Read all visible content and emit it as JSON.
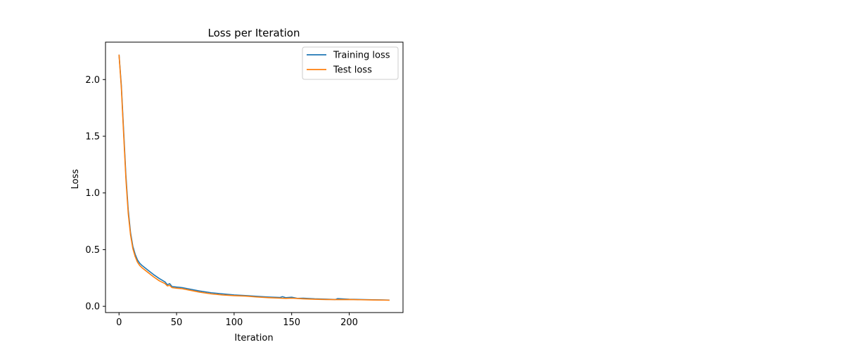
{
  "chart_data": {
    "type": "line",
    "title": "Loss per Iteration",
    "xlabel": "Iteration",
    "ylabel": "Loss",
    "xlim": [
      -11.75,
      246.75
    ],
    "ylim": [
      -0.055,
      2.33
    ],
    "xticks": [
      0,
      50,
      100,
      150,
      200
    ],
    "yticks": [
      0.0,
      0.5,
      1.0,
      1.5,
      2.0
    ],
    "xtick_labels": [
      "0",
      "50",
      "100",
      "150",
      "200"
    ],
    "ytick_labels": [
      "0.0",
      "0.5",
      "1.0",
      "1.5",
      "2.0"
    ],
    "grid": false,
    "legend_position": "top-right",
    "series": [
      {
        "name": "Training loss",
        "color": "#1f77b4",
        "x": [
          0,
          2,
          4,
          6,
          8,
          10,
          12,
          14,
          16,
          18,
          20,
          25,
          30,
          35,
          40,
          42,
          44,
          46,
          50,
          55,
          60,
          70,
          80,
          90,
          100,
          110,
          120,
          130,
          140,
          142,
          145,
          150,
          155,
          160,
          170,
          180,
          188,
          190,
          200,
          210,
          220,
          230,
          235
        ],
        "y": [
          2.22,
          1.95,
          1.55,
          1.15,
          0.85,
          0.65,
          0.53,
          0.46,
          0.41,
          0.38,
          0.36,
          0.32,
          0.28,
          0.245,
          0.215,
          0.19,
          0.2,
          0.175,
          0.17,
          0.165,
          0.155,
          0.135,
          0.12,
          0.11,
          0.1,
          0.095,
          0.088,
          0.082,
          0.078,
          0.085,
          0.076,
          0.08,
          0.07,
          0.072,
          0.066,
          0.063,
          0.06,
          0.068,
          0.062,
          0.06,
          0.058,
          0.056,
          0.055
        ]
      },
      {
        "name": "Test loss",
        "color": "#ff7f0e",
        "x": [
          0,
          2,
          4,
          6,
          8,
          10,
          12,
          14,
          16,
          18,
          20,
          25,
          30,
          35,
          40,
          42,
          44,
          46,
          50,
          55,
          60,
          70,
          80,
          90,
          100,
          110,
          120,
          130,
          140,
          145,
          150,
          160,
          170,
          180,
          190,
          200,
          210,
          220,
          230,
          235
        ],
        "y": [
          2.22,
          1.93,
          1.52,
          1.12,
          0.82,
          0.63,
          0.51,
          0.44,
          0.39,
          0.36,
          0.34,
          0.3,
          0.26,
          0.225,
          0.2,
          0.18,
          0.185,
          0.165,
          0.16,
          0.155,
          0.145,
          0.125,
          0.11,
          0.1,
          0.094,
          0.09,
          0.082,
          0.076,
          0.072,
          0.07,
          0.072,
          0.066,
          0.062,
          0.06,
          0.059,
          0.06,
          0.058,
          0.056,
          0.055,
          0.054
        ]
      }
    ]
  }
}
